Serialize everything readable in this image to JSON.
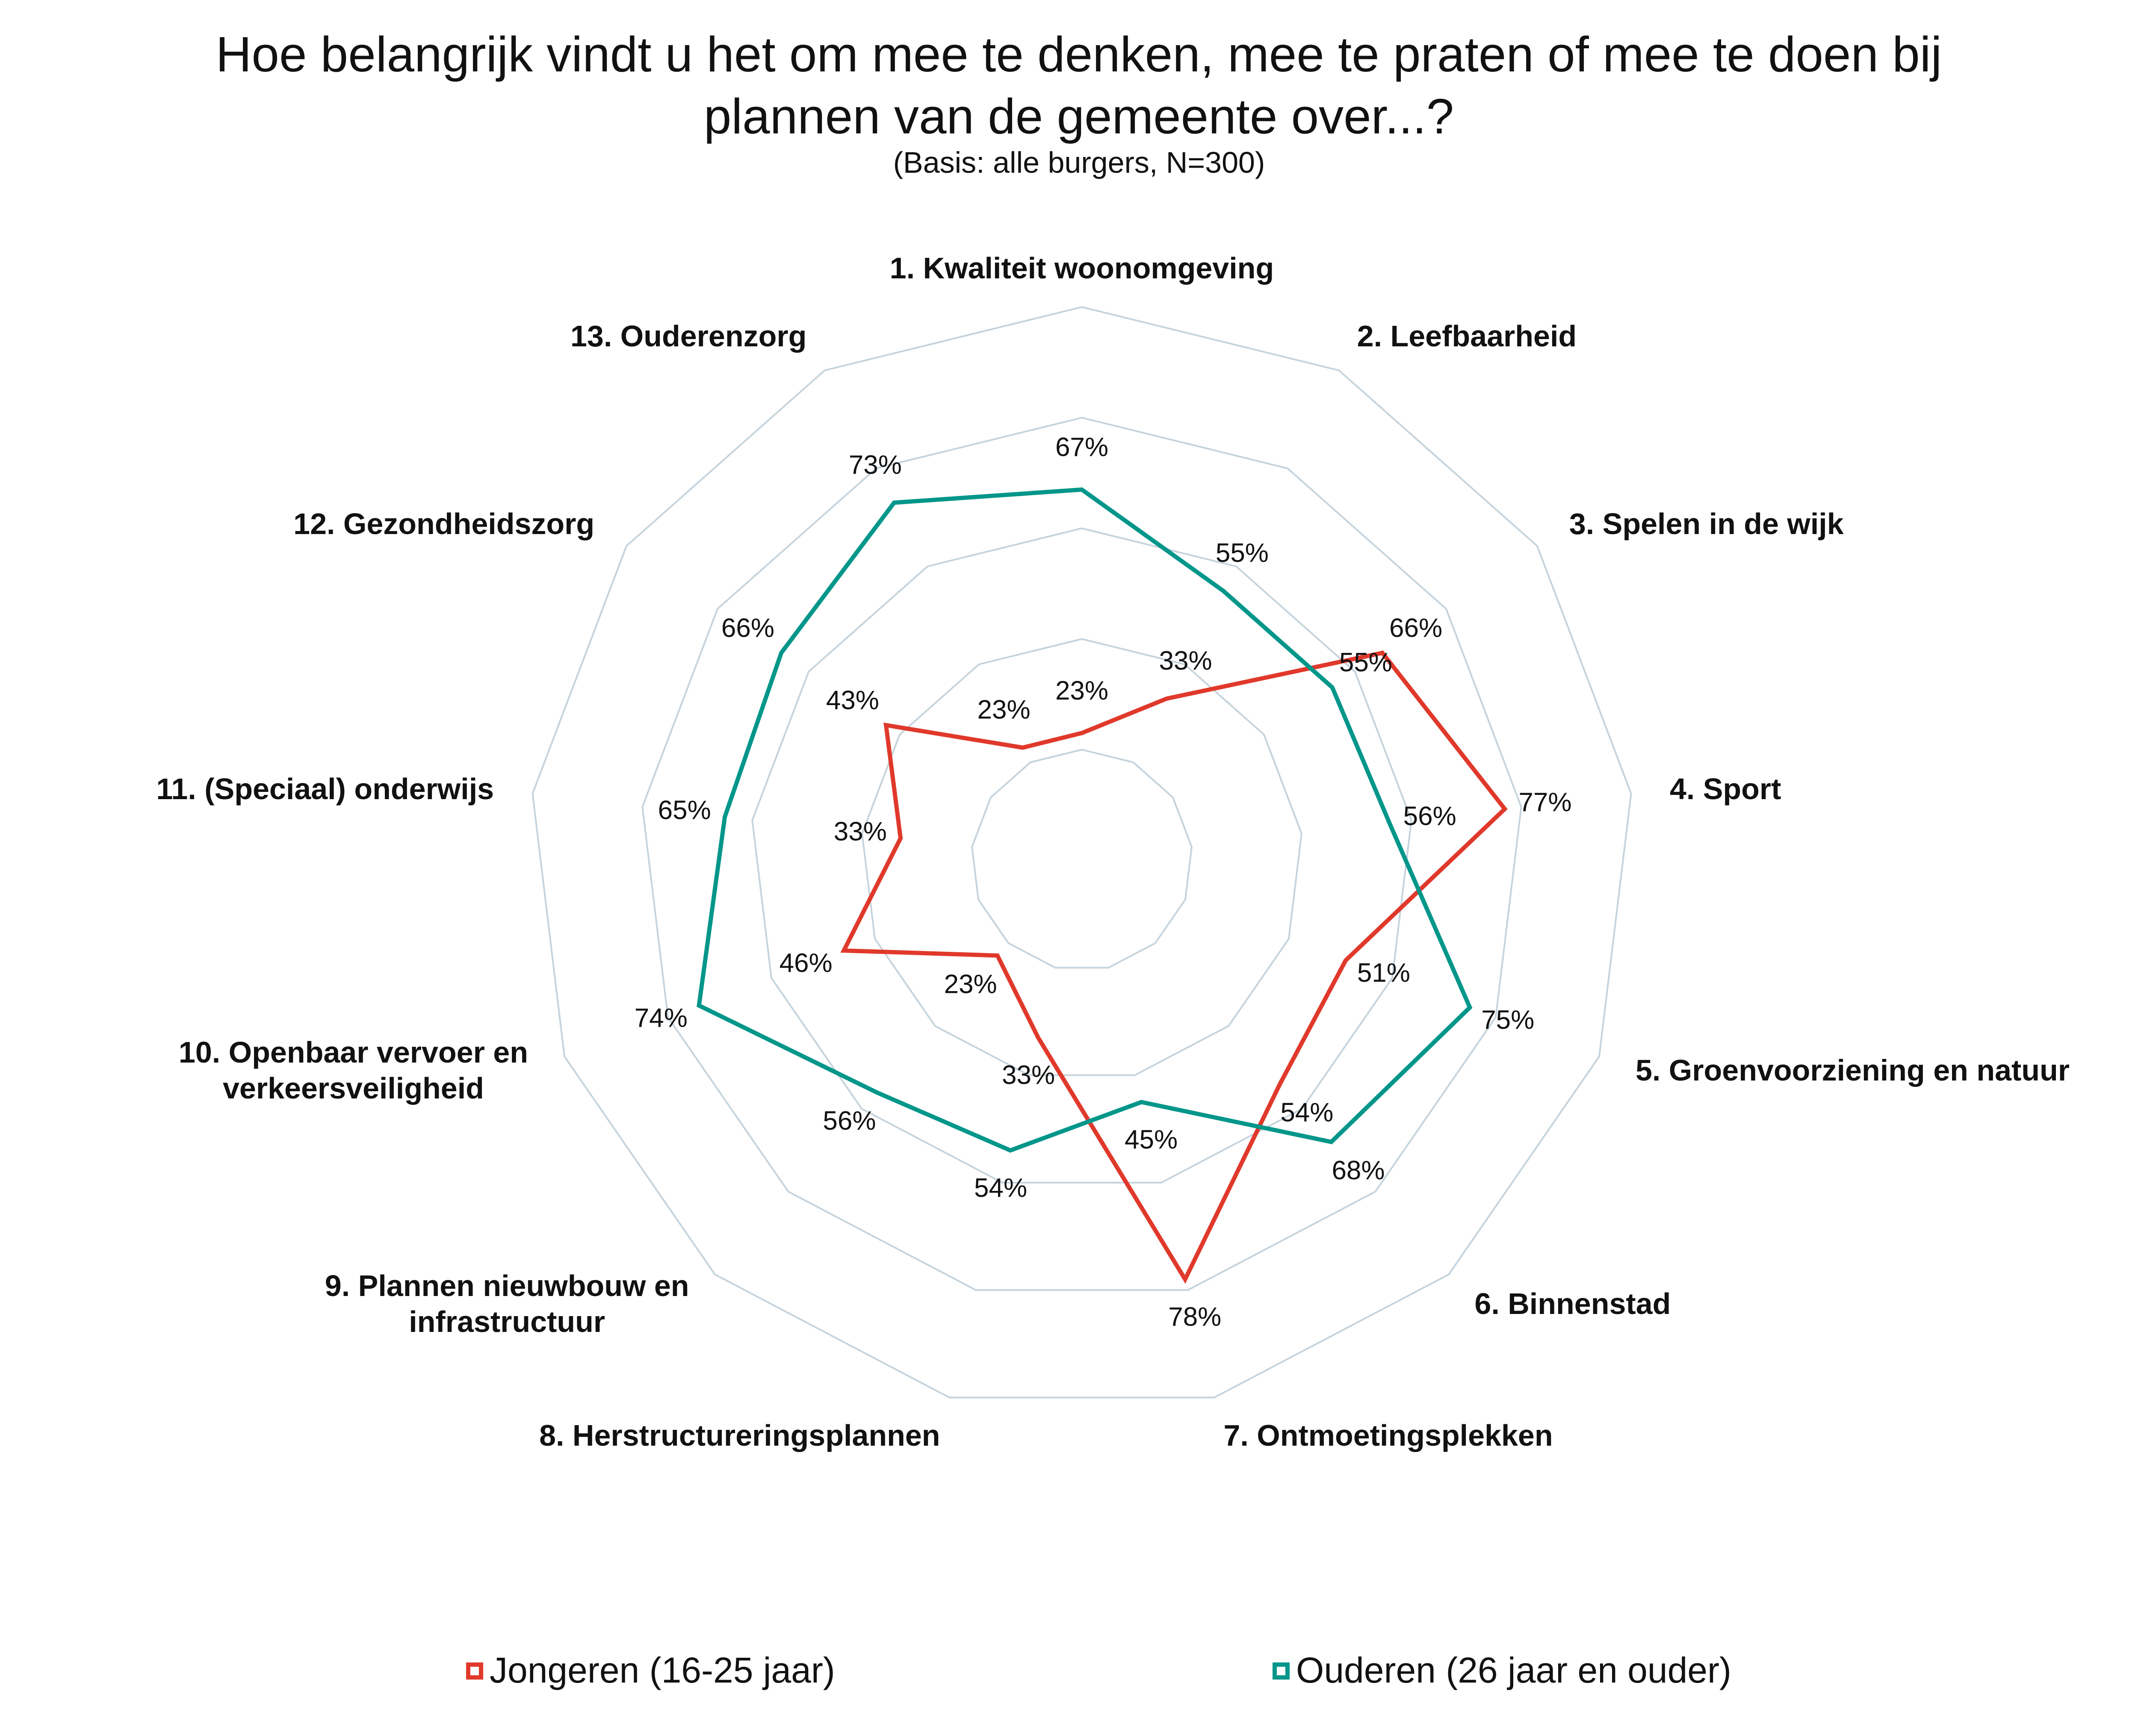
{
  "chart_data": {
    "type": "radar",
    "title": "Hoe belangrijk vindt u het om mee te denken, mee te praten of mee te doen bij plannen van de gemeente over...?",
    "subtitle": "(Basis: alle burgers, N=300)",
    "categories": [
      "1. Kwaliteit woonomgeving",
      "2. Leefbaarheid",
      "3. Spelen in de wijk",
      "4. Sport",
      "5. Groenvoorziening en natuur",
      "6. Binnenstad",
      "7. Ontmoetingsplekken",
      "8. Herstructureringsplannen",
      "9. Plannen nieuwbouw en\ninfrastructuur",
      "10. Openbaar vervoer en\nverkeersveiligheid",
      "11. (Speciaal) onderwijs",
      "12. Gezondheidszorg",
      "13. Ouderenzorg"
    ],
    "series": [
      {
        "name": "Jongeren (16-25 jaar)",
        "color": "#e0392b",
        "values": [
          23,
          33,
          66,
          77,
          51,
          54,
          78,
          33,
          23,
          46,
          33,
          43,
          23
        ],
        "value_labels": [
          "23%",
          "33%",
          "66%",
          "77%",
          "51%",
          "54%",
          "78%",
          "33%",
          "23%",
          "46%",
          "33%",
          "43%",
          "23%"
        ]
      },
      {
        "name": "Ouderen (26 jaar en ouder)",
        "color": "#00968a",
        "values": [
          67,
          55,
          55,
          56,
          75,
          68,
          45,
          54,
          56,
          74,
          65,
          66,
          73
        ],
        "value_labels": [
          "67%",
          "55%",
          "55%",
          "56%",
          "75%",
          "68%",
          "45%",
          "54%",
          "56%",
          "74%",
          "65%",
          "66%",
          "73%"
        ]
      }
    ],
    "ylim": [
      0,
      100
    ],
    "yticks": [
      20,
      40,
      60,
      80,
      100
    ],
    "grid": true,
    "grid_color": "#c5d3dc",
    "legend": "bottom"
  }
}
